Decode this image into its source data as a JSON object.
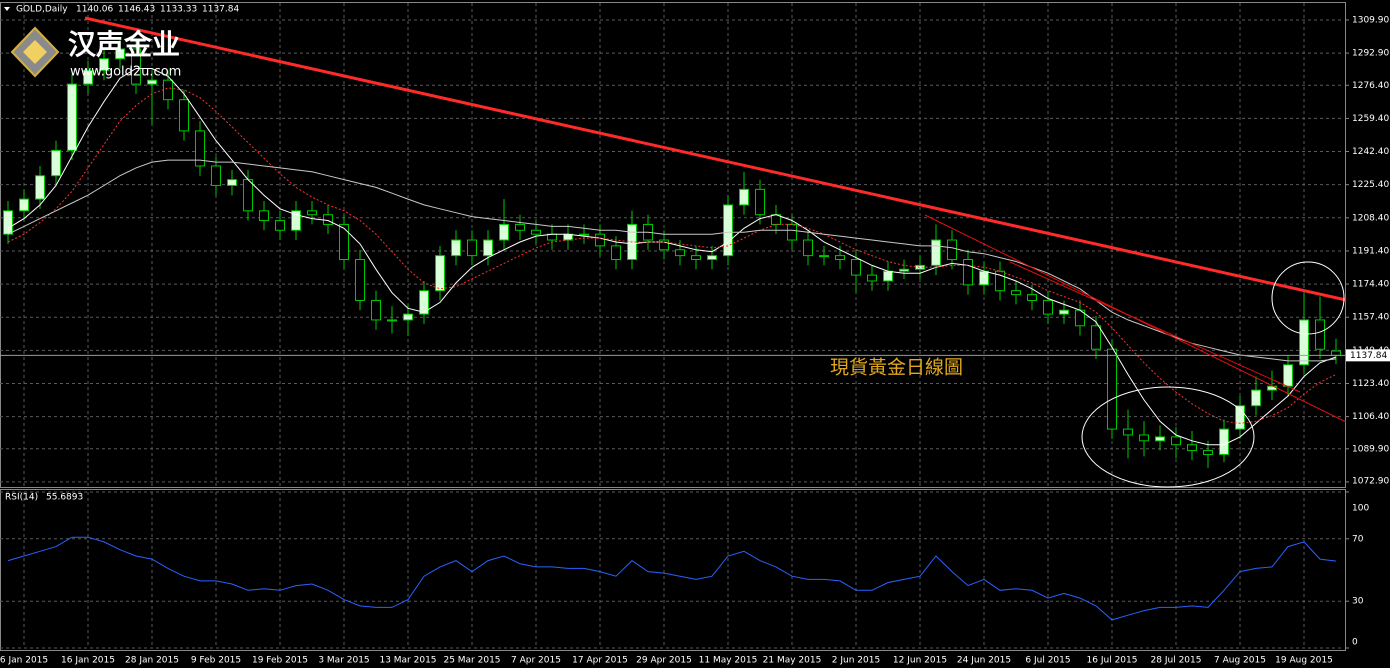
{
  "watermark": {
    "brand": "汉声金业",
    "url": "www.gold2u.com"
  },
  "chart_data": [
    {
      "type": "candlestick",
      "title": "GOLD,Daily",
      "annotation": "現貨黃金日線圖",
      "categories": [
        null,
        "6 Jan 2015",
        null,
        null,
        null,
        "16 Jan 2015",
        null,
        null,
        null,
        "28 Jan 2015",
        null,
        null,
        null,
        "9 Feb 2015",
        null,
        null,
        null,
        "19 Feb 2015",
        null,
        null,
        null,
        "3 Mar 2015",
        null,
        null,
        null,
        "13 Mar 2015",
        null,
        null,
        null,
        "25 Mar 2015",
        null,
        null,
        null,
        "7 Apr 2015",
        null,
        null,
        null,
        "17 Apr 2015",
        null,
        null,
        null,
        "29 Apr 2015",
        null,
        null,
        null,
        "11 May 2015",
        null,
        null,
        null,
        "21 May 2015",
        null,
        null,
        null,
        "2 Jun 2015",
        null,
        null,
        null,
        "12 Jun 2015",
        null,
        null,
        null,
        "24 Jun 2015",
        null,
        null,
        null,
        "6 Jul 2015",
        null,
        null,
        null,
        "16 Jul 2015",
        null,
        null,
        null,
        "28 Jul 2015",
        null,
        null,
        null,
        "7 Aug 2015",
        null,
        null,
        null,
        "19 Aug 2015",
        null,
        null
      ],
      "open": [
        1200,
        1212,
        1218,
        1230,
        1243,
        1277,
        1284,
        1290,
        1295,
        1277,
        1279,
        1269,
        1253,
        1235,
        1225,
        1228,
        1212,
        1207,
        1202,
        1212,
        1210,
        1205,
        1187,
        1166,
        1156,
        1156,
        1159,
        1171,
        1189,
        1197,
        1189,
        1197,
        1205,
        1202,
        1200,
        1197,
        1200,
        1200,
        1194,
        1187,
        1205,
        1197,
        1192,
        1189,
        1187,
        1189,
        1215,
        1223,
        1210,
        1205,
        1197,
        1189,
        1189,
        1187,
        1179,
        1176,
        1181,
        1182,
        1184,
        1197,
        1187,
        1174,
        1181,
        1171,
        1169,
        1166,
        1159,
        1161,
        1153,
        1141,
        1100,
        1097,
        1094,
        1096,
        1092,
        1089,
        1087,
        1100,
        1112,
        1120,
        1122,
        1133,
        1156,
        1140.06
      ],
      "high": [
        1217,
        1223,
        1235,
        1248,
        1282,
        1289,
        1295,
        1300,
        1300,
        1284,
        1284,
        1274,
        1258,
        1240,
        1233,
        1233,
        1217,
        1212,
        1217,
        1217,
        1215,
        1210,
        1192,
        1171,
        1163,
        1164,
        1176,
        1194,
        1202,
        1202,
        1202,
        1218,
        1210,
        1207,
        1205,
        1205,
        1205,
        1205,
        1199,
        1212,
        1210,
        1202,
        1197,
        1194,
        1194,
        1220,
        1232,
        1228,
        1215,
        1210,
        1202,
        1194,
        1194,
        1192,
        1184,
        1186,
        1187,
        1189,
        1205,
        1202,
        1192,
        1186,
        1186,
        1176,
        1174,
        1171,
        1166,
        1166,
        1158,
        1146,
        1110,
        1104,
        1102,
        1101,
        1099,
        1094,
        1105,
        1117,
        1127,
        1130,
        1138,
        1170,
        1168,
        1146.43
      ],
      "low": [
        1195,
        1207,
        1213,
        1225,
        1238,
        1272,
        1279,
        1285,
        1272,
        1256,
        1264,
        1248,
        1230,
        1220,
        1220,
        1207,
        1202,
        1197,
        1197,
        1205,
        1200,
        1182,
        1161,
        1151,
        1149,
        1148,
        1154,
        1166,
        1184,
        1184,
        1184,
        1192,
        1197,
        1195,
        1192,
        1192,
        1195,
        1189,
        1182,
        1182,
        1192,
        1187,
        1184,
        1182,
        1182,
        1184,
        1210,
        1205,
        1200,
        1192,
        1184,
        1184,
        1182,
        1170,
        1171,
        1171,
        1177,
        1177,
        1179,
        1182,
        1169,
        1169,
        1166,
        1164,
        1161,
        1154,
        1154,
        1148,
        1136,
        1095,
        1085,
        1086,
        1089,
        1085,
        1084,
        1080,
        1083,
        1095,
        1107,
        1115,
        1117,
        1128,
        1136,
        1133.33
      ],
      "close": [
        1212,
        1218,
        1230,
        1243,
        1277,
        1284,
        1290,
        1295,
        1277,
        1279,
        1269,
        1253,
        1235,
        1225,
        1228,
        1212,
        1207,
        1202,
        1212,
        1210,
        1205,
        1187,
        1166,
        1156,
        1156,
        1159,
        1171,
        1189,
        1197,
        1189,
        1197,
        1205,
        1202,
        1200,
        1197,
        1200,
        1200,
        1194,
        1187,
        1205,
        1197,
        1192,
        1189,
        1187,
        1189,
        1215,
        1223,
        1210,
        1205,
        1197,
        1189,
        1189,
        1187,
        1179,
        1176,
        1181,
        1182,
        1184,
        1197,
        1187,
        1174,
        1181,
        1171,
        1169,
        1166,
        1159,
        1161,
        1153,
        1141,
        1100,
        1097,
        1094,
        1096,
        1092,
        1089,
        1087,
        1100,
        1112,
        1120,
        1122,
        1133,
        1156,
        1141,
        1137.84
      ],
      "up_color": "#d8ffd8",
      "down_color": "#000000",
      "wick_color": "#00c800",
      "series": [
        {
          "color": "#ffffff",
          "values": [
            1203,
            1208,
            1215,
            1225,
            1240,
            1255,
            1268,
            1280,
            1285,
            1285,
            1281,
            1272,
            1260,
            1248,
            1238,
            1228,
            1220,
            1213,
            1210,
            1208,
            1207,
            1203,
            1195,
            1182,
            1170,
            1162,
            1160,
            1165,
            1175,
            1183,
            1188,
            1192,
            1196,
            1199,
            1200,
            1200,
            1199,
            1198,
            1196,
            1195,
            1196,
            1196,
            1194,
            1192,
            1191,
            1196,
            1203,
            1208,
            1210,
            1207,
            1202,
            1196,
            1192,
            1188,
            1184,
            1181,
            1180,
            1180,
            1183,
            1185,
            1184,
            1181,
            1179,
            1176,
            1172,
            1167,
            1164,
            1161,
            1155,
            1142,
            1128,
            1115,
            1104,
            1097,
            1094,
            1092,
            1092,
            1096,
            1103,
            1110,
            1117,
            1127,
            1134,
            1137
          ]
        },
        {
          "color": "#ff3030",
          "dashed": true,
          "values": [
            1196,
            1200,
            1206,
            1213,
            1222,
            1234,
            1246,
            1258,
            1266,
            1272,
            1275,
            1274,
            1270,
            1263,
            1255,
            1247,
            1239,
            1231,
            1224,
            1219,
            1215,
            1212,
            1207,
            1200,
            1191,
            1182,
            1175,
            1172,
            1173,
            1177,
            1181,
            1185,
            1189,
            1193,
            1196,
            1197,
            1198,
            1198,
            1197,
            1196,
            1196,
            1196,
            1195,
            1194,
            1193,
            1194,
            1198,
            1202,
            1205,
            1205,
            1203,
            1200,
            1196,
            1192,
            1189,
            1186,
            1184,
            1183,
            1183,
            1184,
            1184,
            1183,
            1181,
            1178,
            1175,
            1171,
            1168,
            1165,
            1160,
            1152,
            1143,
            1134,
            1126,
            1119,
            1113,
            1108,
            1104,
            1103,
            1104,
            1107,
            1111,
            1118,
            1124,
            1128
          ]
        },
        {
          "color": "#c8c8c8",
          "values": [
            1200,
            1204,
            1208,
            1212,
            1216,
            1220,
            1225,
            1230,
            1234,
            1237,
            1238,
            1238,
            1238,
            1237,
            1237,
            1236,
            1235,
            1234,
            1233,
            1232,
            1230,
            1228,
            1226,
            1224,
            1221,
            1218,
            1215,
            1213,
            1211,
            1209,
            1208,
            1207,
            1206,
            1205,
            1204,
            1204,
            1203,
            1202,
            1202,
            1201,
            1201,
            1200,
            1200,
            1200,
            1200,
            1201,
            1201,
            1202,
            1202,
            1202,
            1201,
            1200,
            1199,
            1198,
            1197,
            1196,
            1195,
            1194,
            1194,
            1193,
            1191,
            1190,
            1188,
            1186,
            1183,
            1180,
            1176,
            1172,
            1166,
            1160,
            1156,
            1153,
            1150,
            1147,
            1144,
            1142,
            1140,
            1138,
            1137,
            1136,
            1135,
            1135,
            1135,
            1136
          ]
        }
      ],
      "ylim": [
        1070.3,
        1318.6
      ],
      "yticks": [
        {
          "value": 1309.9,
          "label": "1309.90"
        },
        {
          "value": 1292.9,
          "label": "1292.90"
        },
        {
          "value": 1276.4,
          "label": "1276.40"
        },
        {
          "value": 1259.4,
          "label": "1259.40"
        },
        {
          "value": 1242.4,
          "label": "1242.40"
        },
        {
          "value": 1225.4,
          "label": "1225.40"
        },
        {
          "value": 1208.4,
          "label": "1208.40"
        },
        {
          "value": 1191.4,
          "label": "1191.40"
        },
        {
          "value": 1174.4,
          "label": "1174.40"
        },
        {
          "value": 1157.4,
          "label": "1157.40"
        },
        {
          "value": 1140.4,
          "label": "1140.40"
        },
        {
          "value": 1123.4,
          "label": "1123.40"
        },
        {
          "value": 1106.4,
          "label": "1106.40"
        },
        {
          "value": 1089.9,
          "label": "1089.90"
        },
        {
          "value": 1072.9,
          "label": "1072.90"
        }
      ],
      "grid": true
    },
    {
      "type": "line",
      "title": "RSI(14)",
      "color": "#2a62ff",
      "values": [
        56,
        59,
        62,
        65,
        71,
        71,
        68,
        63,
        59,
        57,
        51,
        46,
        43,
        43,
        41,
        37,
        38,
        37,
        40,
        41,
        37,
        31,
        27,
        26,
        26,
        31,
        46,
        52,
        56,
        49,
        56,
        59,
        54,
        52,
        52,
        51,
        51,
        49,
        46,
        56,
        49,
        48,
        46,
        44,
        46,
        59,
        62,
        56,
        52,
        46,
        44,
        44,
        43,
        37,
        37,
        42,
        44,
        46,
        59,
        49,
        40,
        44,
        37,
        38,
        37,
        32,
        35,
        32,
        27,
        18,
        21,
        24,
        26,
        26,
        27,
        26,
        37,
        49,
        51,
        52,
        65,
        68,
        57,
        55.6893
      ],
      "ylim": [
        0,
        100
      ],
      "yticks": [
        0,
        30,
        70,
        100
      ],
      "grid": true
    }
  ]
}
